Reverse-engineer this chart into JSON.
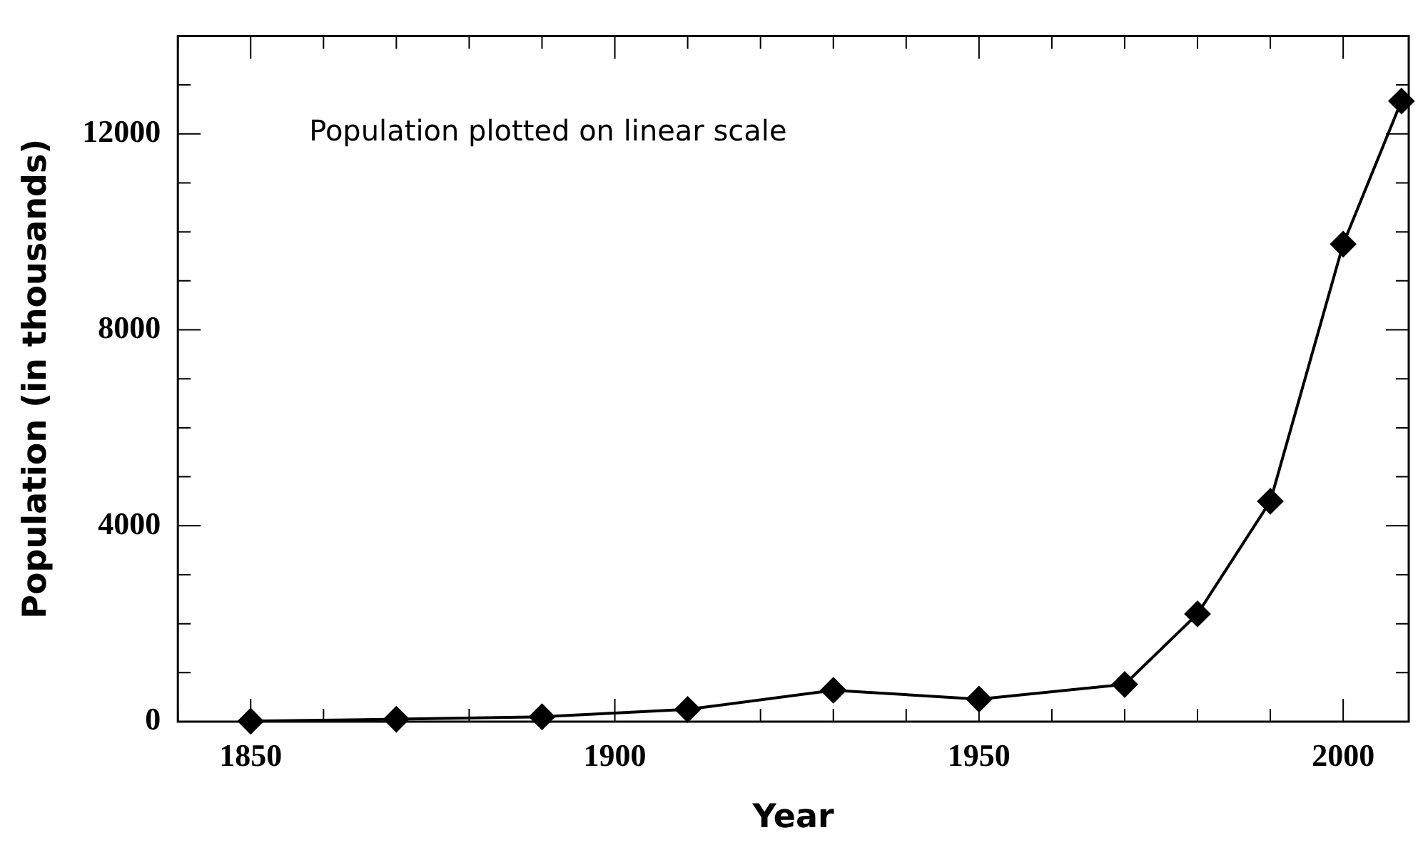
{
  "chart_data": {
    "type": "line",
    "xlabel": "Year",
    "ylabel": "Population (in thousands)",
    "annotations": [
      "Population plotted on linear scale"
    ],
    "x": [
      1850,
      1870,
      1890,
      1910,
      1930,
      1950,
      1970,
      1980,
      1990,
      2000,
      2008
    ],
    "series": [
      {
        "color": "#000000",
        "values": [
          10,
          50,
          100,
          250,
          640,
          460,
          760,
          2200,
          4500,
          9750,
          12670
        ]
      }
    ],
    "xlim": [
      1840,
      2009
    ],
    "xticks": [
      {
        "value": 1840,
        "label": null
      },
      1850,
      {
        "value": 1860,
        "label": null
      },
      {
        "value": 1870,
        "label": null
      },
      {
        "value": 1880,
        "label": null
      },
      {
        "value": 1890,
        "label": null
      },
      1900,
      {
        "value": 1910,
        "label": null
      },
      {
        "value": 1920,
        "label": null
      },
      {
        "value": 1930,
        "label": null
      },
      {
        "value": 1940,
        "label": null
      },
      1950,
      {
        "value": 1960,
        "label": null
      },
      {
        "value": 1970,
        "label": null
      },
      {
        "value": 1980,
        "label": null
      },
      {
        "value": 1990,
        "label": null
      },
      2000
    ],
    "ylim": [
      0,
      14000
    ],
    "yticks": [
      0,
      {
        "value": 1000,
        "label": null
      },
      {
        "value": 2000,
        "label": null
      },
      {
        "value": 3000,
        "label": null
      },
      4000,
      {
        "value": 5000,
        "label": null
      },
      {
        "value": 6000,
        "label": null
      },
      {
        "value": 7000,
        "label": null
      },
      8000,
      {
        "value": 9000,
        "label": null
      },
      {
        "value": 10000,
        "label": null
      },
      {
        "value": 11000,
        "label": null
      },
      12000,
      {
        "value": 13000,
        "label": null
      },
      {
        "value": 14000,
        "label": null
      }
    ],
    "marker": "diamond",
    "line_style": "solid",
    "grid": false,
    "legend": false
  }
}
